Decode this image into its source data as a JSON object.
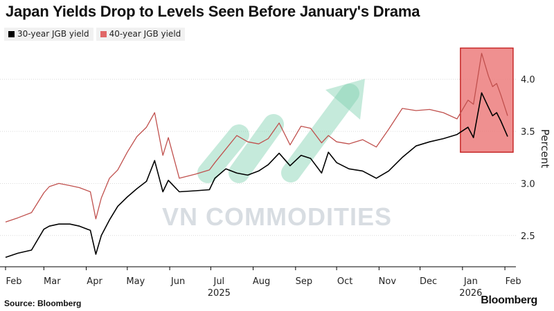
{
  "title": "Japan Yields Drop to Levels Seen Before January's Drama",
  "source": "Source: Bloomberg",
  "brand": "Bloomberg",
  "watermark": "VN COMMODITIES",
  "colors": {
    "series_30y": "#000000",
    "series_40y": "#c0504d",
    "highlight_fill": "#ec7d7d",
    "highlight_border": "#c62828",
    "gridline": "#d9d9d9"
  },
  "chart_data": {
    "type": "line",
    "title": "Japan Yields Drop to Levels Seen Before January's Drama",
    "ylabel": "Percent",
    "ylim": [
      2.2,
      4.35
    ],
    "y_ticks": [
      2.5,
      3.0,
      3.5,
      4.0
    ],
    "y_tick_labels": [
      "2.5",
      "3.0",
      "3.5",
      "4.0"
    ],
    "grid": true,
    "legend": "top-left",
    "x_range": [
      "2025-02-01",
      "2026-02-05"
    ],
    "x_ticks": [
      {
        "date": "2025-02-01",
        "label": "Feb"
      },
      {
        "date": "2025-03-01",
        "label": "Mar"
      },
      {
        "date": "2025-04-01",
        "label": "Apr"
      },
      {
        "date": "2025-05-01",
        "label": "May"
      },
      {
        "date": "2025-06-01",
        "label": "Jun"
      },
      {
        "date": "2025-07-01",
        "label": "Jul"
      },
      {
        "date": "2025-08-01",
        "label": "Aug"
      },
      {
        "date": "2025-09-01",
        "label": "Sep"
      },
      {
        "date": "2025-10-01",
        "label": "Oct"
      },
      {
        "date": "2025-11-01",
        "label": "Nov"
      },
      {
        "date": "2025-12-01",
        "label": "Dec"
      },
      {
        "date": "2026-01-01",
        "label": "Jan"
      },
      {
        "date": "2026-02-01",
        "label": "Feb"
      }
    ],
    "year_labels": [
      {
        "date": "2025-07-01",
        "label": "2025"
      },
      {
        "date": "2026-01-01",
        "label": "2026"
      }
    ],
    "highlight": {
      "x_start": "2026-01-01",
      "x_end": "2026-02-07",
      "y_start": 3.3,
      "y_end": 4.3
    },
    "series": [
      {
        "name": "30-year JGB yield",
        "x": [
          "2025-02-01",
          "2025-02-10",
          "2025-02-20",
          "2025-03-01",
          "2025-03-05",
          "2025-03-12",
          "2025-03-20",
          "2025-03-27",
          "2025-04-04",
          "2025-04-08",
          "2025-04-12",
          "2025-04-18",
          "2025-04-24",
          "2025-05-01",
          "2025-05-08",
          "2025-05-15",
          "2025-05-21",
          "2025-05-27",
          "2025-05-31",
          "2025-06-08",
          "2025-06-20",
          "2025-06-30",
          "2025-07-04",
          "2025-07-12",
          "2025-07-20",
          "2025-07-28",
          "2025-08-05",
          "2025-08-12",
          "2025-08-20",
          "2025-08-28",
          "2025-09-05",
          "2025-09-12",
          "2025-09-20",
          "2025-09-25",
          "2025-10-01",
          "2025-10-10",
          "2025-10-20",
          "2025-10-30",
          "2025-11-08",
          "2025-11-18",
          "2025-11-28",
          "2025-12-08",
          "2025-12-18",
          "2025-12-28",
          "2026-01-05",
          "2026-01-09",
          "2026-01-15",
          "2026-01-20",
          "2026-01-23",
          "2026-01-26",
          "2026-01-29",
          "2026-02-03"
        ],
        "values": [
          2.29,
          2.33,
          2.36,
          2.56,
          2.59,
          2.61,
          2.61,
          2.59,
          2.55,
          2.32,
          2.5,
          2.65,
          2.78,
          2.87,
          2.95,
          3.02,
          3.22,
          2.92,
          3.03,
          2.92,
          2.93,
          2.94,
          3.05,
          3.14,
          3.1,
          3.08,
          3.12,
          3.18,
          3.29,
          3.17,
          3.27,
          3.24,
          3.1,
          3.3,
          3.2,
          3.14,
          3.12,
          3.05,
          3.12,
          3.25,
          3.36,
          3.4,
          3.43,
          3.47,
          3.54,
          3.44,
          3.87,
          3.73,
          3.65,
          3.68,
          3.6,
          3.45
        ]
      },
      {
        "name": "40-year JGB yield",
        "x": [
          "2025-02-01",
          "2025-02-10",
          "2025-02-20",
          "2025-03-01",
          "2025-03-05",
          "2025-03-12",
          "2025-03-20",
          "2025-03-27",
          "2025-04-04",
          "2025-04-08",
          "2025-04-12",
          "2025-04-18",
          "2025-04-24",
          "2025-05-01",
          "2025-05-08",
          "2025-05-15",
          "2025-05-21",
          "2025-05-27",
          "2025-05-31",
          "2025-06-08",
          "2025-06-20",
          "2025-06-30",
          "2025-07-04",
          "2025-07-12",
          "2025-07-20",
          "2025-07-28",
          "2025-08-05",
          "2025-08-12",
          "2025-08-20",
          "2025-08-28",
          "2025-09-05",
          "2025-09-12",
          "2025-09-20",
          "2025-09-25",
          "2025-10-01",
          "2025-10-10",
          "2025-10-20",
          "2025-10-30",
          "2025-11-08",
          "2025-11-18",
          "2025-11-28",
          "2025-12-08",
          "2025-12-18",
          "2025-12-28",
          "2026-01-05",
          "2026-01-09",
          "2026-01-15",
          "2026-01-20",
          "2026-01-23",
          "2026-01-26",
          "2026-01-29",
          "2026-02-03"
        ],
        "values": [
          2.63,
          2.67,
          2.72,
          2.91,
          2.97,
          3.0,
          2.98,
          2.96,
          2.92,
          2.66,
          2.86,
          3.05,
          3.13,
          3.3,
          3.45,
          3.54,
          3.68,
          3.27,
          3.44,
          3.05,
          3.09,
          3.13,
          3.2,
          3.33,
          3.46,
          3.4,
          3.38,
          3.43,
          3.58,
          3.37,
          3.55,
          3.53,
          3.39,
          3.46,
          3.4,
          3.38,
          3.42,
          3.35,
          3.52,
          3.72,
          3.7,
          3.71,
          3.68,
          3.62,
          3.8,
          3.76,
          4.25,
          4.03,
          3.93,
          3.96,
          3.85,
          3.65
        ]
      }
    ]
  }
}
